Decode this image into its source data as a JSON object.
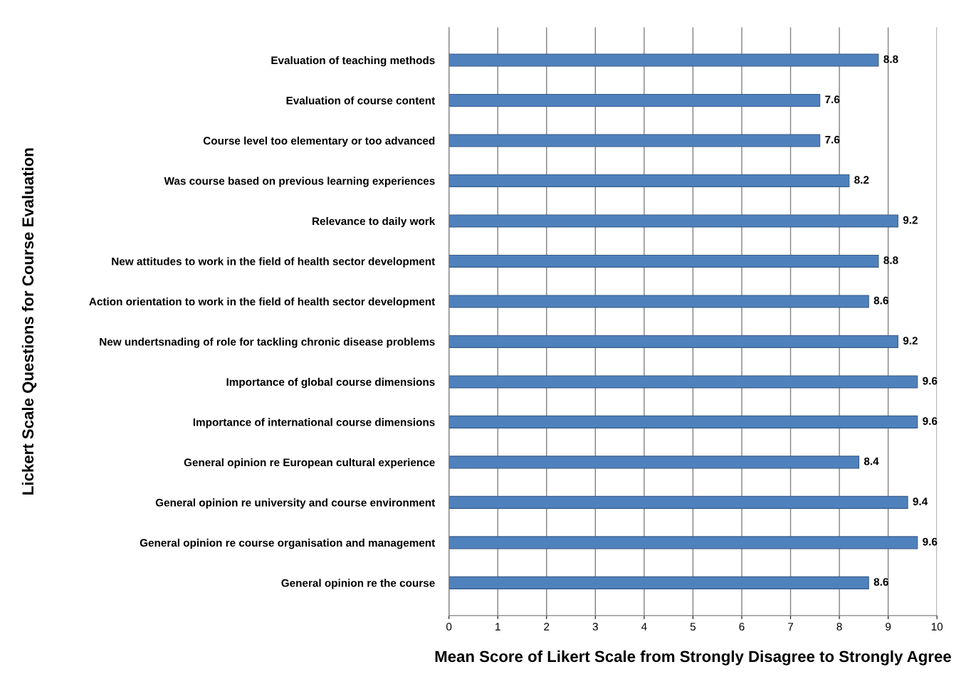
{
  "chart_data": {
    "type": "bar",
    "orientation": "horizontal",
    "xlabel": "Mean Score of Likert Scale from Strongly Disagree to Strongly Agree",
    "ylabel": "Lickert Scale Questions for Course Evaluation",
    "categories": [
      "Evaluation of teaching methods",
      "Evaluation of course content",
      "Course level too elementary or too advanced",
      "Was course based on previous learning experiences",
      "Relevance to daily work",
      "New attitudes to work in the field of health sector development",
      "Action orientation to work in the field of health sector development",
      "New undertsnading of role for tackling chronic disease problems",
      "Importance of global course dimensions",
      "Importance of international course dimensions",
      "General opinion re European cultural experience",
      "General opinion re university and course environment",
      "General opinion re course organisation and management",
      "General opinion re the course"
    ],
    "values": [
      8.8,
      7.6,
      7.6,
      8.2,
      9.2,
      8.8,
      8.6,
      9.2,
      9.6,
      9.6,
      8.4,
      9.4,
      9.6,
      8.6
    ],
    "color": "#4f81bd",
    "xlim": [
      0,
      10
    ],
    "xticks": [
      0,
      1,
      2,
      3,
      4,
      5,
      6,
      7,
      8,
      9,
      10
    ],
    "grid": "x",
    "data_labels": true
  }
}
